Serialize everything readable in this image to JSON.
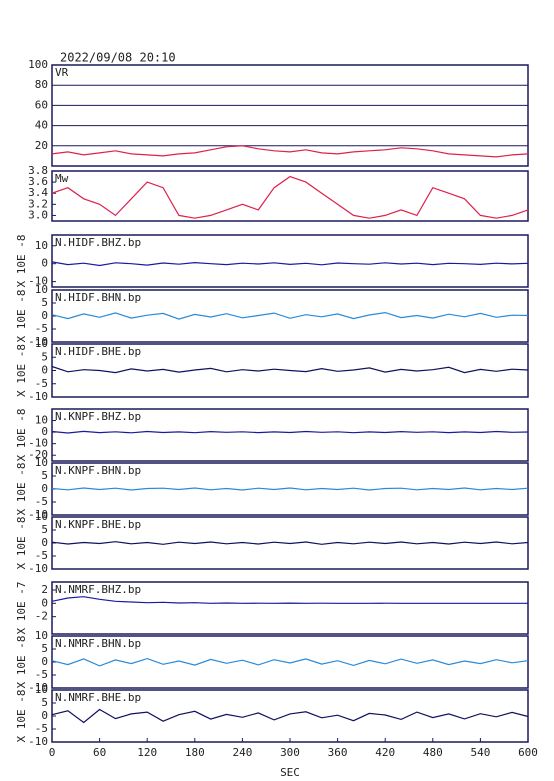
{
  "title": "2022/09/08 20:10",
  "chart_data": [
    {
      "type": "line",
      "x": [
        0,
        20,
        40,
        60,
        80,
        100,
        120,
        140,
        160,
        180,
        200,
        220,
        240,
        260,
        280,
        300,
        320,
        340,
        360,
        380,
        400,
        420,
        440,
        460,
        480,
        500,
        520,
        540,
        560,
        580,
        600
      ],
      "series": [
        {
          "name": "VR",
          "color": "#e0204a",
          "values": [
            12,
            14,
            11,
            13,
            15,
            12,
            11,
            10,
            12,
            13,
            16,
            19,
            20,
            17,
            15,
            14,
            16,
            13,
            12,
            14,
            15,
            16,
            18,
            17,
            15,
            12,
            11,
            10,
            9,
            11,
            12
          ]
        }
      ],
      "xlim": [
        0,
        600
      ],
      "ylim": [
        0,
        100
      ],
      "yticks": [
        20,
        40,
        60,
        80,
        100
      ],
      "grid": true
    },
    {
      "type": "line",
      "x": [
        0,
        20,
        40,
        60,
        80,
        100,
        120,
        140,
        160,
        180,
        200,
        220,
        240,
        260,
        280,
        300,
        320,
        340,
        360,
        380,
        400,
        420,
        440,
        460,
        480,
        500,
        520,
        540,
        560,
        580,
        600
      ],
      "series": [
        {
          "name": "Mw",
          "color": "#e0204a",
          "values": [
            3.4,
            3.5,
            3.3,
            3.2,
            3.0,
            3.3,
            3.6,
            3.5,
            3.0,
            2.95,
            3.0,
            3.1,
            3.2,
            3.1,
            3.5,
            3.7,
            3.6,
            3.4,
            3.2,
            3.0,
            2.95,
            3.0,
            3.1,
            3.0,
            3.5,
            3.4,
            3.3,
            3.0,
            2.95,
            3.0,
            3.1
          ]
        }
      ],
      "xlim": [
        0,
        600
      ],
      "ylim": [
        2.9,
        3.8
      ],
      "yticks": [
        {
          "value": 3,
          "label": "3.0"
        },
        3.2,
        3.4,
        3.6,
        3.8
      ],
      "grid": false
    },
    {
      "type": "line",
      "ylabel": "X 10E -8",
      "x": [
        0,
        20,
        40,
        60,
        80,
        100,
        120,
        140,
        160,
        180,
        200,
        220,
        240,
        260,
        280,
        300,
        320,
        340,
        360,
        380,
        400,
        420,
        440,
        460,
        480,
        500,
        520,
        540,
        560,
        580,
        600
      ],
      "series": [
        {
          "name": "N.HIDF.BHZ.bp",
          "color": "#1a1aa0",
          "values": [
            1,
            -0.5,
            0.3,
            -1,
            0.5,
            0,
            -0.8,
            0.4,
            -0.3,
            0.6,
            0,
            -0.5,
            0.3,
            -0.2,
            0.5,
            -0.4,
            0.2,
            -0.6,
            0.4,
            0,
            -0.3,
            0.5,
            -0.2,
            0.3,
            -0.5,
            0.2,
            0,
            -0.4,
            0.3,
            -0.1,
            0.2
          ]
        }
      ],
      "xlim": [
        0,
        600
      ],
      "ylim": [
        -13,
        16
      ],
      "yticks": [
        10,
        0,
        -10
      ],
      "grid": false
    },
    {
      "type": "line",
      "ylabel": "X 10E -8",
      "x": [
        0,
        20,
        40,
        60,
        80,
        100,
        120,
        140,
        160,
        180,
        200,
        220,
        240,
        260,
        280,
        300,
        320,
        340,
        360,
        380,
        400,
        420,
        440,
        460,
        480,
        500,
        520,
        540,
        560,
        580,
        600
      ],
      "series": [
        {
          "name": "N.HIDF.BHN.bp",
          "color": "#2a8ad8",
          "values": [
            0.5,
            -1,
            0.8,
            -0.5,
            1.2,
            -0.8,
            0.3,
            1,
            -1.2,
            0.6,
            -0.4,
            0.9,
            -0.7,
            0.2,
            1.1,
            -0.9,
            0.5,
            -0.3,
            0.8,
            -1,
            0.4,
            1.3,
            -0.6,
            0.2,
            -0.8,
            0.7,
            -0.3,
            1,
            -0.5,
            0.3,
            0.2
          ]
        }
      ],
      "xlim": [
        0,
        600
      ],
      "ylim": [
        -10,
        10
      ],
      "yticks": [
        10,
        5,
        0,
        -5,
        -10
      ],
      "grid": false
    },
    {
      "type": "line",
      "ylabel": "X 10E -8",
      "x": [
        0,
        20,
        40,
        60,
        80,
        100,
        120,
        140,
        160,
        180,
        200,
        220,
        240,
        260,
        280,
        300,
        320,
        340,
        360,
        380,
        400,
        420,
        440,
        460,
        480,
        500,
        520,
        540,
        560,
        580,
        600
      ],
      "series": [
        {
          "name": "N.HIDF.BHE.bp",
          "color": "#101060",
          "values": [
            1.5,
            -0.5,
            0.3,
            0,
            -0.8,
            0.6,
            -0.2,
            0.4,
            -0.6,
            0.2,
            0.8,
            -0.5,
            0.3,
            -0.2,
            0.5,
            0,
            -0.4,
            0.7,
            -0.3,
            0.2,
            1,
            -0.6,
            0.4,
            -0.2,
            0.3,
            1.2,
            -0.8,
            0.4,
            -0.3,
            0.5,
            0.2
          ]
        }
      ],
      "xlim": [
        0,
        600
      ],
      "ylim": [
        -10,
        10
      ],
      "yticks": [
        10,
        5,
        0,
        -5,
        -10
      ],
      "grid": false
    },
    {
      "type": "line",
      "ylabel": "X 10E -8",
      "x": [
        0,
        20,
        40,
        60,
        80,
        100,
        120,
        140,
        160,
        180,
        200,
        220,
        240,
        260,
        280,
        300,
        320,
        340,
        360,
        380,
        400,
        420,
        440,
        460,
        480,
        500,
        520,
        540,
        560,
        580,
        600
      ],
      "series": [
        {
          "name": "N.KNPF.BHZ.bp",
          "color": "#1a1aa0",
          "values": [
            0.5,
            -0.8,
            0.6,
            -0.4,
            0.3,
            -0.6,
            0.5,
            -0.3,
            0.2,
            -0.5,
            0.4,
            -0.2,
            0.3,
            -0.4,
            0.2,
            -0.3,
            0.5,
            -0.2,
            0.3,
            -0.5,
            0.2,
            -0.3,
            0.4,
            -0.2,
            0.3,
            -0.4,
            0.2,
            -0.3,
            0.5,
            -0.2,
            0.1
          ]
        }
      ],
      "xlim": [
        0,
        600
      ],
      "ylim": [
        -25,
        20
      ],
      "yticks": [
        10,
        0,
        -10,
        -20
      ],
      "grid": false
    },
    {
      "type": "line",
      "ylabel": "X 10E -8",
      "x": [
        0,
        20,
        40,
        60,
        80,
        100,
        120,
        140,
        160,
        180,
        200,
        220,
        240,
        260,
        280,
        300,
        320,
        340,
        360,
        380,
        400,
        420,
        440,
        460,
        480,
        500,
        520,
        540,
        560,
        580,
        600
      ],
      "series": [
        {
          "name": "N.KNPF.BHN.bp",
          "color": "#2a8ad8",
          "values": [
            0.2,
            -0.3,
            0.4,
            -0.2,
            0.3,
            -0.4,
            0.2,
            0.3,
            -0.2,
            0.4,
            -0.3,
            0.2,
            -0.4,
            0.3,
            -0.2,
            0.4,
            -0.3,
            0.2,
            -0.2,
            0.3,
            -0.4,
            0.2,
            0.3,
            -0.3,
            0.2,
            -0.2,
            0.4,
            -0.3,
            0.2,
            -0.2,
            0.3
          ]
        }
      ],
      "xlim": [
        0,
        600
      ],
      "ylim": [
        -10,
        10
      ],
      "yticks": [
        10,
        5,
        0,
        -5,
        -10
      ],
      "grid": false
    },
    {
      "type": "line",
      "ylabel": "X 10E -8",
      "x": [
        0,
        20,
        40,
        60,
        80,
        100,
        120,
        140,
        160,
        180,
        200,
        220,
        240,
        260,
        280,
        300,
        320,
        340,
        360,
        380,
        400,
        420,
        440,
        460,
        480,
        500,
        520,
        540,
        560,
        580,
        600
      ],
      "series": [
        {
          "name": "N.KNPF.BHE.bp",
          "color": "#101060",
          "values": [
            0.3,
            -0.4,
            0.2,
            -0.2,
            0.5,
            -0.3,
            0.2,
            -0.5,
            0.3,
            -0.2,
            0.4,
            -0.3,
            0.2,
            -0.4,
            0.3,
            -0.2,
            0.4,
            -0.5,
            0.2,
            -0.3,
            0.3,
            -0.2,
            0.4,
            -0.3,
            0.2,
            -0.4,
            0.3,
            -0.2,
            0.4,
            -0.3,
            0.2
          ]
        }
      ],
      "xlim": [
        0,
        600
      ],
      "ylim": [
        -10,
        10
      ],
      "yticks": [
        10,
        5,
        0,
        -5,
        -10
      ],
      "grid": false
    },
    {
      "type": "line",
      "ylabel": "X 10E -7",
      "x": [
        0,
        20,
        40,
        60,
        80,
        100,
        120,
        140,
        160,
        180,
        200,
        220,
        240,
        260,
        280,
        300,
        320,
        340,
        360,
        380,
        400,
        420,
        440,
        460,
        480,
        500,
        520,
        540,
        560,
        580,
        600
      ],
      "series": [
        {
          "name": "N.NMRF.BHZ.bp",
          "color": "#1a1aa0",
          "values": [
            0.3,
            0.8,
            1,
            0.6,
            0.3,
            0.2,
            0.1,
            0.15,
            0.05,
            0.1,
            0,
            0.05,
            0,
            0.02,
            0,
            0.03,
            0,
            0.02,
            0,
            0.01,
            0,
            0.02,
            0,
            0.01,
            0,
            0.01,
            0,
            0.01,
            0,
            0,
            0
          ]
        }
      ],
      "xlim": [
        0,
        600
      ],
      "ylim": [
        -4.6,
        3.2
      ],
      "yticks": [
        2,
        0,
        -2
      ],
      "grid": false
    },
    {
      "type": "line",
      "ylabel": "X 10E -8",
      "x": [
        0,
        20,
        40,
        60,
        80,
        100,
        120,
        140,
        160,
        180,
        200,
        220,
        240,
        260,
        280,
        300,
        320,
        340,
        360,
        380,
        400,
        420,
        440,
        460,
        480,
        500,
        520,
        540,
        560,
        580,
        600
      ],
      "series": [
        {
          "name": "N.NMRF.BHN.bp",
          "color": "#2a8ad8",
          "values": [
            0.5,
            -1,
            1.2,
            -1.5,
            0.8,
            -0.6,
            1.3,
            -0.9,
            0.4,
            -1.2,
            1,
            -0.5,
            0.7,
            -1.1,
            0.9,
            -0.4,
            1.2,
            -0.8,
            0.5,
            -1.3,
            0.6,
            -0.7,
            1.1,
            -0.5,
            0.8,
            -1,
            0.4,
            -0.6,
            0.9,
            -0.3,
            0.5
          ]
        }
      ],
      "xlim": [
        0,
        600
      ],
      "ylim": [
        -10,
        10
      ],
      "yticks": [
        10,
        5,
        0,
        -5,
        -10
      ],
      "grid": false
    },
    {
      "type": "line",
      "ylabel": "X 10E -8",
      "xlabel": "SEC",
      "x": [
        0,
        20,
        40,
        60,
        80,
        100,
        120,
        140,
        160,
        180,
        200,
        220,
        240,
        260,
        280,
        300,
        320,
        340,
        360,
        380,
        400,
        420,
        440,
        460,
        480,
        500,
        520,
        540,
        560,
        580,
        600
      ],
      "series": [
        {
          "name": "N.NMRF.BHE.bp",
          "color": "#101060",
          "values": [
            0.5,
            2,
            -2.5,
            2.5,
            -1,
            0.8,
            1.5,
            -2,
            0.5,
            1.8,
            -1.2,
            0.6,
            -0.5,
            1.2,
            -1.5,
            0.8,
            1.6,
            -0.7,
            0.3,
            -1.8,
            1,
            0.4,
            -1.3,
            1.5,
            -0.6,
            0.8,
            -1.1,
            0.9,
            -0.3,
            1.4,
            -0.2
          ]
        }
      ],
      "xlim": [
        0,
        600
      ],
      "ylim": [
        -10,
        10
      ],
      "yticks": [
        10,
        5,
        0,
        -5,
        -10
      ],
      "xticks": [
        0,
        60,
        120,
        180,
        240,
        300,
        360,
        420,
        480,
        540,
        600
      ],
      "grid": false
    }
  ]
}
